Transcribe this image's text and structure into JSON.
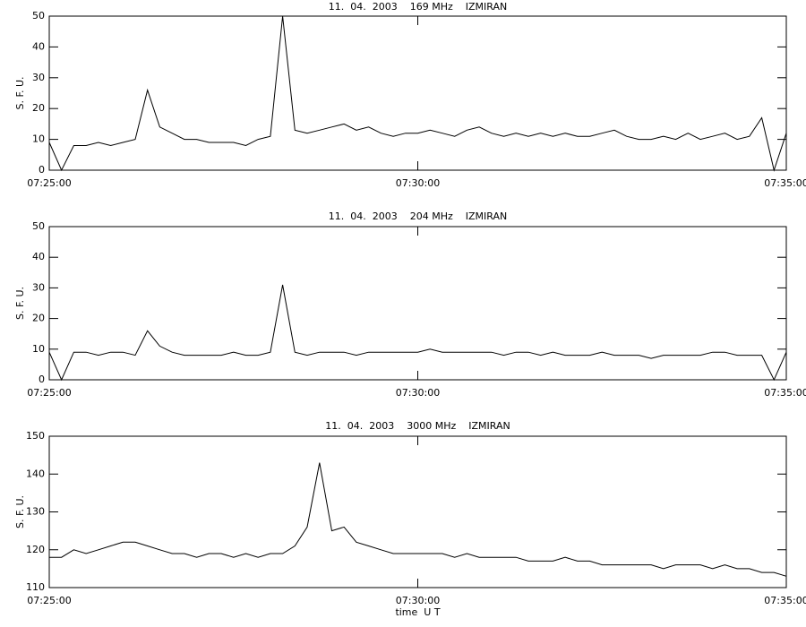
{
  "chart_data": [
    {
      "type": "line",
      "title": "11.  04.  2003    169 MHz    IZMIRAN",
      "y_label": "S. F. U.",
      "x": [
        "07:25:00",
        "07:25:10",
        "07:25:20",
        "07:25:30",
        "07:25:40",
        "07:25:50",
        "07:26:00",
        "07:26:10",
        "07:26:20",
        "07:26:30",
        "07:26:40",
        "07:26:50",
        "07:27:00",
        "07:27:10",
        "07:27:20",
        "07:27:30",
        "07:27:40",
        "07:27:50",
        "07:28:00",
        "07:28:10",
        "07:28:20",
        "07:28:30",
        "07:28:40",
        "07:28:50",
        "07:29:00",
        "07:29:10",
        "07:29:20",
        "07:29:30",
        "07:29:40",
        "07:29:50",
        "07:30:00",
        "07:30:10",
        "07:30:20",
        "07:30:30",
        "07:30:40",
        "07:30:50",
        "07:31:00",
        "07:31:10",
        "07:31:20",
        "07:31:30",
        "07:31:40",
        "07:31:50",
        "07:32:00",
        "07:32:10",
        "07:32:20",
        "07:32:30",
        "07:32:40",
        "07:32:50",
        "07:33:00",
        "07:33:10",
        "07:33:20",
        "07:33:30",
        "07:33:40",
        "07:33:50",
        "07:34:00",
        "07:34:10",
        "07:34:20",
        "07:34:30",
        "07:34:40",
        "07:34:50",
        "07:35:00"
      ],
      "values": [
        9,
        0,
        8,
        8,
        9,
        8,
        9,
        10,
        26,
        14,
        12,
        10,
        10,
        9,
        9,
        9,
        8,
        10,
        11,
        50,
        13,
        12,
        13,
        14,
        15,
        13,
        14,
        12,
        11,
        12,
        12,
        13,
        12,
        11,
        13,
        14,
        12,
        11,
        12,
        11,
        12,
        11,
        12,
        11,
        11,
        12,
        13,
        11,
        10,
        10,
        11,
        10,
        12,
        10,
        11,
        12,
        10,
        11,
        17,
        0,
        12
      ],
      "color": "#000000",
      "xlim": [
        "07:25:00",
        "07:35:00"
      ],
      "xticks": [
        "07:25:00",
        "07:30:00",
        "07:35:00"
      ],
      "ylim": [
        0,
        50
      ],
      "yticks": [
        0,
        10,
        20,
        30,
        40,
        50
      ]
    },
    {
      "type": "line",
      "title": "11.  04.  2003    204 MHz    IZMIRAN",
      "y_label": "S. F. U.",
      "x": [
        "07:25:00",
        "07:25:10",
        "07:25:20",
        "07:25:30",
        "07:25:40",
        "07:25:50",
        "07:26:00",
        "07:26:10",
        "07:26:20",
        "07:26:30",
        "07:26:40",
        "07:26:50",
        "07:27:00",
        "07:27:10",
        "07:27:20",
        "07:27:30",
        "07:27:40",
        "07:27:50",
        "07:28:00",
        "07:28:10",
        "07:28:20",
        "07:28:30",
        "07:28:40",
        "07:28:50",
        "07:29:00",
        "07:29:10",
        "07:29:20",
        "07:29:30",
        "07:29:40",
        "07:29:50",
        "07:30:00",
        "07:30:10",
        "07:30:20",
        "07:30:30",
        "07:30:40",
        "07:30:50",
        "07:31:00",
        "07:31:10",
        "07:31:20",
        "07:31:30",
        "07:31:40",
        "07:31:50",
        "07:32:00",
        "07:32:10",
        "07:32:20",
        "07:32:30",
        "07:32:40",
        "07:32:50",
        "07:33:00",
        "07:33:10",
        "07:33:20",
        "07:33:30",
        "07:33:40",
        "07:33:50",
        "07:34:00",
        "07:34:10",
        "07:34:20",
        "07:34:30",
        "07:34:40",
        "07:34:50",
        "07:35:00"
      ],
      "values": [
        9,
        0,
        9,
        9,
        8,
        9,
        9,
        8,
        16,
        11,
        9,
        8,
        8,
        8,
        8,
        9,
        8,
        8,
        9,
        31,
        9,
        8,
        9,
        9,
        9,
        8,
        9,
        9,
        9,
        9,
        9,
        10,
        9,
        9,
        9,
        9,
        9,
        8,
        9,
        9,
        8,
        9,
        8,
        8,
        8,
        9,
        8,
        8,
        8,
        7,
        8,
        8,
        8,
        8,
        9,
        9,
        8,
        8,
        8,
        0,
        9
      ],
      "color": "#000000",
      "xlim": [
        "07:25:00",
        "07:35:00"
      ],
      "xticks": [
        "07:25:00",
        "07:30:00",
        "07:35:00"
      ],
      "ylim": [
        0,
        50
      ],
      "yticks": [
        0,
        10,
        20,
        30,
        40,
        50
      ]
    },
    {
      "type": "line",
      "title": "11.  04.  2003    3000 MHz    IZMIRAN",
      "y_label": "S. F. U.",
      "x_label": "time  U T",
      "x": [
        "07:25:00",
        "07:25:10",
        "07:25:20",
        "07:25:30",
        "07:25:40",
        "07:25:50",
        "07:26:00",
        "07:26:10",
        "07:26:20",
        "07:26:30",
        "07:26:40",
        "07:26:50",
        "07:27:00",
        "07:27:10",
        "07:27:20",
        "07:27:30",
        "07:27:40",
        "07:27:50",
        "07:28:00",
        "07:28:10",
        "07:28:20",
        "07:28:30",
        "07:28:40",
        "07:28:50",
        "07:29:00",
        "07:29:10",
        "07:29:20",
        "07:29:30",
        "07:29:40",
        "07:29:50",
        "07:30:00",
        "07:30:10",
        "07:30:20",
        "07:30:30",
        "07:30:40",
        "07:30:50",
        "07:31:00",
        "07:31:10",
        "07:31:20",
        "07:31:30",
        "07:31:40",
        "07:31:50",
        "07:32:00",
        "07:32:10",
        "07:32:20",
        "07:32:30",
        "07:32:40",
        "07:32:50",
        "07:33:00",
        "07:33:10",
        "07:33:20",
        "07:33:30",
        "07:33:40",
        "07:33:50",
        "07:34:00",
        "07:34:10",
        "07:34:20",
        "07:34:30",
        "07:34:40",
        "07:34:50",
        "07:35:00"
      ],
      "values": [
        118,
        118,
        120,
        119,
        120,
        121,
        122,
        122,
        121,
        120,
        119,
        119,
        118,
        119,
        119,
        118,
        119,
        118,
        119,
        119,
        121,
        126,
        143,
        125,
        126,
        122,
        121,
        120,
        119,
        119,
        119,
        119,
        119,
        118,
        119,
        118,
        118,
        118,
        118,
        117,
        117,
        117,
        118,
        117,
        117,
        116,
        116,
        116,
        116,
        116,
        115,
        116,
        116,
        116,
        115,
        116,
        115,
        115,
        114,
        114,
        113
      ],
      "color": "#000000",
      "xlim": [
        "07:25:00",
        "07:35:00"
      ],
      "xticks": [
        "07:25:00",
        "07:30:00",
        "07:35:00"
      ],
      "ylim": [
        110,
        150
      ],
      "yticks": [
        110,
        120,
        130,
        140,
        150
      ]
    }
  ]
}
